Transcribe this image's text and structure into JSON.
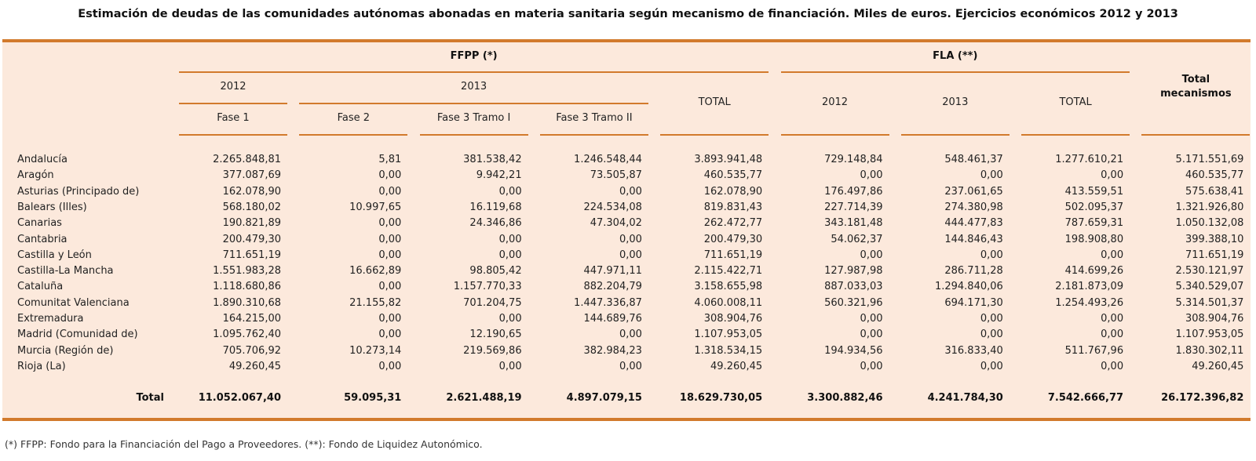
{
  "title": "Estimación de deudas de las comunidades autónomas abonadas en materia sanitaria según mecanismo de financiación. Miles de euros. Ejercicios económicos 2012 y 2013",
  "colors": {
    "background": "#fce9dc",
    "rule": "#d27a2c"
  },
  "header": {
    "ffpp": "FFPP (*)",
    "fla": "FLA (**)",
    "ffpp_2012": "2012",
    "ffpp_2013": "2013",
    "fase1": "Fase 1",
    "fase2": "Fase 2",
    "fase3_1": "Fase 3 Tramo I",
    "fase3_2": "Fase 3 Tramo II",
    "ffpp_total": "TOTAL",
    "fla_2012": "2012",
    "fla_2013": "2013",
    "fla_total": "TOTAL",
    "total_mecanismos_1": "Total",
    "total_mecanismos_2": "mecanismos"
  },
  "rows": [
    {
      "name": "Andalucía",
      "values": [
        "2.265.848,81",
        "5,81",
        "381.538,42",
        "1.246.548,44",
        "3.893.941,48",
        "729.148,84",
        "548.461,37",
        "1.277.610,21",
        "5.171.551,69"
      ]
    },
    {
      "name": "Aragón",
      "values": [
        "377.087,69",
        "0,00",
        "9.942,21",
        "73.505,87",
        "460.535,77",
        "0,00",
        "0,00",
        "0,00",
        "460.535,77"
      ]
    },
    {
      "name": "Asturias (Principado de)",
      "values": [
        "162.078,90",
        "0,00",
        "0,00",
        "0,00",
        "162.078,90",
        "176.497,86",
        "237.061,65",
        "413.559,51",
        "575.638,41"
      ]
    },
    {
      "name": "Balears (Illes)",
      "values": [
        "568.180,02",
        "10.997,65",
        "16.119,68",
        "224.534,08",
        "819.831,43",
        "227.714,39",
        "274.380,98",
        "502.095,37",
        "1.321.926,80"
      ]
    },
    {
      "name": "Canarias",
      "values": [
        "190.821,89",
        "0,00",
        "24.346,86",
        "47.304,02",
        "262.472,77",
        "343.181,48",
        "444.477,83",
        "787.659,31",
        "1.050.132,08"
      ]
    },
    {
      "name": "Cantabria",
      "values": [
        "200.479,30",
        "0,00",
        "0,00",
        "0,00",
        "200.479,30",
        "54.062,37",
        "144.846,43",
        "198.908,80",
        "399.388,10"
      ]
    },
    {
      "name": "Castilla y León",
      "values": [
        "711.651,19",
        "0,00",
        "0,00",
        "0,00",
        "711.651,19",
        "0,00",
        "0,00",
        "0,00",
        "711.651,19"
      ]
    },
    {
      "name": "Castilla-La Mancha",
      "values": [
        "1.551.983,28",
        "16.662,89",
        "98.805,42",
        "447.971,11",
        "2.115.422,71",
        "127.987,98",
        "286.711,28",
        "414.699,26",
        "2.530.121,97"
      ]
    },
    {
      "name": "Cataluña",
      "values": [
        "1.118.680,86",
        "0,00",
        "1.157.770,33",
        "882.204,79",
        "3.158.655,98",
        "887.033,03",
        "1.294.840,06",
        "2.181.873,09",
        "5.340.529,07"
      ]
    },
    {
      "name": "Comunitat Valenciana",
      "values": [
        "1.890.310,68",
        "21.155,82",
        "701.204,75",
        "1.447.336,87",
        "4.060.008,11",
        "560.321,96",
        "694.171,30",
        "1.254.493,26",
        "5.314.501,37"
      ]
    },
    {
      "name": "Extremadura",
      "values": [
        "164.215,00",
        "0,00",
        "0,00",
        "144.689,76",
        "308.904,76",
        "0,00",
        "0,00",
        "0,00",
        "308.904,76"
      ]
    },
    {
      "name": "Madrid (Comunidad de)",
      "values": [
        "1.095.762,40",
        "0,00",
        "12.190,65",
        "0,00",
        "1.107.953,05",
        "0,00",
        "0,00",
        "0,00",
        "1.107.953,05"
      ]
    },
    {
      "name": "Murcia (Región de)",
      "values": [
        "705.706,92",
        "10.273,14",
        "219.569,86",
        "382.984,23",
        "1.318.534,15",
        "194.934,56",
        "316.833,40",
        "511.767,96",
        "1.830.302,11"
      ]
    },
    {
      "name": "Rioja (La)",
      "values": [
        "49.260,45",
        "0,00",
        "0,00",
        "0,00",
        "49.260,45",
        "0,00",
        "0,00",
        "0,00",
        "49.260,45"
      ]
    }
  ],
  "total": {
    "name": "Total",
    "values": [
      "11.052.067,40",
      "59.095,31",
      "2.621.488,19",
      "4.897.079,15",
      "18.629.730,05",
      "3.300.882,46",
      "4.241.784,30",
      "7.542.666,77",
      "26.172.396,82"
    ]
  },
  "footnote": "(*) FFPP: Fondo para la Financiación del Pago a Proveedores. (**): Fondo de Liquidez Autonómico."
}
